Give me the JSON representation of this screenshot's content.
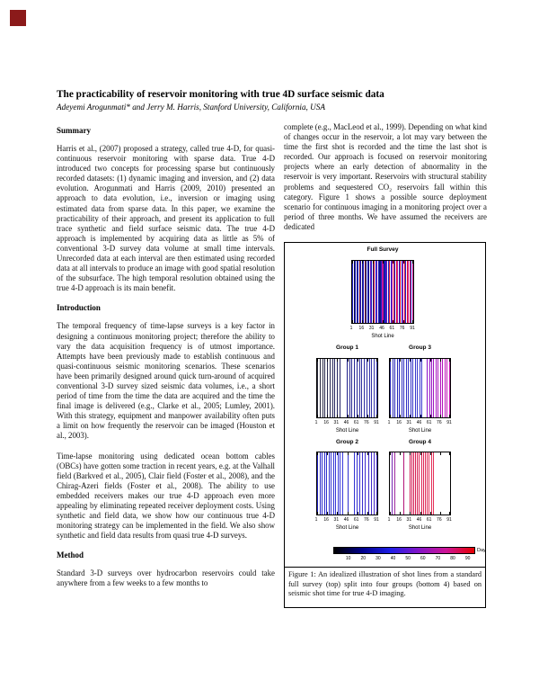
{
  "page_marker": {
    "color": "#8b1a1a"
  },
  "header": {
    "title": "The practicability of reservoir monitoring with true 4D surface seismic data",
    "authors": "Adeyemi Arogunmati* and Jerry M. Harris, Stanford University, California, USA"
  },
  "columns": {
    "left": {
      "blocks": [
        {
          "type": "heading",
          "text": "Summary"
        },
        {
          "type": "para",
          "text": "Harris et al., (2007) proposed a strategy, called true 4-D, for quasi-continuous reservoir monitoring with sparse data. True 4-D introduced two concepts for processing sparse but continuously recorded datasets: (1) dynamic imaging and inversion, and (2) data evolution. Arogunmati and Harris (2009, 2010) presented an approach to data evolution, i.e., inversion or imaging using estimated data from sparse data. In this paper, we examine the practicability of their approach, and present its application to full trace synthetic and field surface seismic data. The true 4-D approach is implemented by acquiring data as little as 5% of conventional 3-D survey data volume at small time intervals. Unrecorded data at each interval are then estimated using recorded data at all intervals to produce an image with good spatial resolution of the subsurface. The high temporal resolution obtained using the true 4-D approach is its main benefit."
        },
        {
          "type": "heading",
          "text": "Introduction"
        },
        {
          "type": "para",
          "text": "The temporal frequency of time-lapse surveys is a key factor in designing a continuous monitoring project; therefore the ability to vary the data acquisition frequency is of utmost importance. Attempts have been previously made to establish continuous and quasi-continuous seismic monitoring scenarios. These scenarios have been primarily designed around quick turn-around of acquired conventional 3-D survey sized seismic data volumes, i.e., a short period of time from the time the data are acquired and the time the final image is delivered (e.g., Clarke et al., 2005; Lumley, 2001). With this strategy, equipment and manpower availability often puts a limit on how frequently the reservoir can be imaged (Houston et al., 2003)."
        },
        {
          "type": "para",
          "text": "Time-lapse monitoring using dedicated ocean bottom cables (OBCs) have gotten some traction in recent years, e.g. at the Valhall field (Barkved et al., 2005), Clair field (Foster et al., 2008), and the Chirag-Azeri fields (Foster et al., 2008). The ability to use embedded receivers makes our true 4-D approach even more appealing by eliminating repeated receiver deployment costs. Using synthetic and field data, we show how our continuous true 4-D monitoring strategy can be implemented in the field. We also show synthetic and field data results from quasi true 4-D surveys."
        },
        {
          "type": "heading",
          "text": "Method"
        },
        {
          "type": "para",
          "text": "Standard 3-D surveys over hydrocarbon reservoirs could take anywhere from a few weeks to a few months to"
        }
      ]
    },
    "right": {
      "blocks": [
        {
          "type": "para",
          "text": "complete (e.g., MacLeod et al., 1999). Depending on what kind of changes occur in the reservoir, a lot may vary between the time the first shot is recorded and the time the last shot is recorded. Our approach is focused on reservoir monitoring projects where an early detection of abnormality in the reservoir is very important. Reservoirs with structural stability problems and sequestered CO₂ reservoirs fall within this category. Figure 1 shows a possible source deployment scenario for continuous imaging in a monitoring project over a period of three months. We have assumed the receivers are dedicated"
        }
      ]
    }
  },
  "figure": {
    "panels": [
      {
        "key": "full",
        "title": "Full Survey",
        "xlabel": "Shot Line",
        "xticks": [
          "1",
          "16",
          "31",
          "46",
          "61",
          "76",
          "91"
        ],
        "stripe_colors": [
          "#2020c8",
          "#0a0a46",
          "#2020c8",
          "#14147a",
          "#2020c8",
          "#780a32",
          "#2020c8",
          "#14147a",
          "#2020c8",
          "#780a32",
          "#14147a",
          "#2020c8",
          "#14147a",
          "#6e14b4",
          "#2020c8",
          "#14147a",
          "#dc1432",
          "#2020c8",
          "#6e14b4",
          "#2020c8",
          "#14147a",
          "#2020c8",
          "#c814a0",
          "#14147a",
          "#2020c8",
          "#6e14b4",
          "#2020c8",
          "#dc1432",
          "#2020c8",
          "#c814a0",
          "#dc1432",
          "#2020c8",
          "#dc1432",
          "#c814a0",
          "#2020c8",
          "#dc1432",
          "#2020c8",
          "#c814a0",
          "#dc1432",
          "#2020c8",
          "#dc1432",
          "#c814a0",
          "#dc1432",
          "#2020c8",
          "#c814a0"
        ]
      },
      {
        "key": "g1",
        "title": "Group 1",
        "xlabel": "Shot Line",
        "xticks": [
          "1",
          "16",
          "31",
          "46",
          "61",
          "76",
          "91"
        ],
        "segments": [
          {
            "from": 0.01,
            "to": 0.38,
            "count": 10,
            "colors": [
              "#2b2b3d",
              "#26266a"
            ]
          },
          {
            "from": 0.5,
            "to": 0.99,
            "count": 13,
            "colors": [
              "#22228c",
              "#3535b0"
            ]
          }
        ]
      },
      {
        "key": "g3",
        "title": "Group 3",
        "xlabel": "Shot Line",
        "xticks": [
          "1",
          "16",
          "31",
          "46",
          "61",
          "76",
          "91"
        ],
        "segments": [
          {
            "from": 0.01,
            "to": 0.53,
            "count": 15,
            "colors": [
              "#2323b4",
              "#3c3cd2"
            ]
          },
          {
            "from": 0.62,
            "to": 0.99,
            "count": 11,
            "colors": [
              "#8c14c8",
              "#c814b4"
            ]
          }
        ]
      },
      {
        "key": "g2",
        "title": "Group 2",
        "xlabel": "Shot Line",
        "xticks": [
          "1",
          "16",
          "31",
          "46",
          "61",
          "76",
          "91"
        ],
        "segments": [
          {
            "from": 0.01,
            "to": 0.42,
            "count": 12,
            "colors": [
              "#2828c8",
              "#3c3cdc"
            ]
          },
          {
            "from": 0.51,
            "to": 0.53,
            "count": 1,
            "colors": [
              "#3030d0"
            ]
          },
          {
            "from": 0.62,
            "to": 0.99,
            "count": 9,
            "colors": [
              "#3232d2",
              "#4628c8"
            ]
          }
        ]
      },
      {
        "key": "g4",
        "title": "Group 4",
        "xlabel": "Shot Line",
        "xticks": [
          "1",
          "16",
          "31",
          "46",
          "61",
          "76",
          "91"
        ],
        "segments": [
          {
            "from": 0.03,
            "to": 0.08,
            "count": 2,
            "colors": [
              "#7828b4",
              "#a028a0"
            ]
          },
          {
            "from": 0.22,
            "to": 0.24,
            "count": 1,
            "colors": [
              "#b41478"
            ]
          },
          {
            "from": 0.33,
            "to": 0.72,
            "count": 13,
            "colors": [
              "#d21450",
              "#e6325a"
            ]
          }
        ]
      }
    ],
    "colorbar": {
      "label": "Day",
      "ticks": [
        "10",
        "20",
        "30",
        "40",
        "50",
        "60",
        "70",
        "80",
        "90"
      ],
      "gradient": [
        "#000000",
        "#00008b",
        "#1e1ee6",
        "#8214c8",
        "#cd1496",
        "#e60000"
      ],
      "range": [
        0,
        95
      ]
    },
    "caption": "Figure 1:  An idealized illustration of shot lines from a standard full survey (top) split into four groups (bottom 4) based on seismic shot time for true 4-D imaging."
  }
}
